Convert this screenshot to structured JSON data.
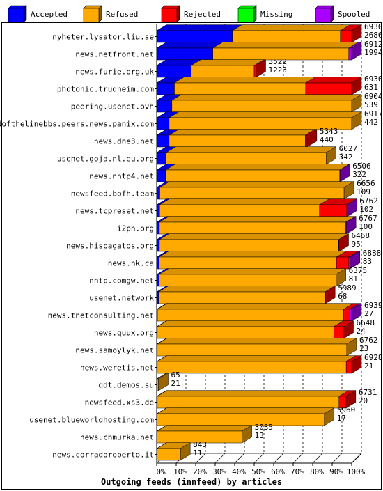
{
  "chart_data": {
    "type": "bar",
    "orientation": "horizontal",
    "stacked": true,
    "style": "3d",
    "xlabel": "Outgoing feeds (innfeed) by articles",
    "x_unit": "percent",
    "xlim": [
      0,
      100
    ],
    "x_ticks": [
      "0%",
      "10%",
      "20%",
      "30%",
      "40%",
      "50%",
      "60%",
      "70%",
      "80%",
      "90%",
      "100%"
    ],
    "grid": "vertical dashed",
    "legend_position": "top",
    "legend": [
      {
        "key": "accepted",
        "label": "Accepted",
        "color": "#0000ff"
      },
      {
        "key": "refused",
        "label": "Refused",
        "color": "#ffaa00"
      },
      {
        "key": "rejected",
        "label": "Rejected",
        "color": "#ff0000"
      },
      {
        "key": "missing",
        "label": "Missing",
        "color": "#00ff00"
      },
      {
        "key": "spooled",
        "label": "Spooled",
        "color": "#aa00ff"
      }
    ],
    "rows": [
      {
        "name": "nyheter.lysator.liu.se",
        "offered": "6930",
        "accepted": "2686",
        "pct": {
          "accepted": 38.8,
          "refused": 55.4,
          "rejected": 5.8,
          "missing": 0,
          "spooled": 0
        }
      },
      {
        "name": "news.netfront.net",
        "offered": "6912",
        "accepted": "1994",
        "pct": {
          "accepted": 28.8,
          "refused": 69.7,
          "rejected": 0,
          "missing": 0,
          "spooled": 1.5
        }
      },
      {
        "name": "news.furie.org.uk",
        "offered": "3522",
        "accepted": "1223",
        "pct": {
          "accepted": 17.7,
          "refused": 32.3,
          "rejected": 0.9,
          "missing": 0,
          "spooled": 0
        }
      },
      {
        "name": "photonic.trudheim.com",
        "offered": "6930",
        "accepted": "631",
        "pct": {
          "accepted": 9.1,
          "refused": 67.3,
          "rejected": 23.6,
          "missing": 0,
          "spooled": 0
        }
      },
      {
        "name": "peering.usenet.ovh",
        "offered": "6904",
        "accepted": "539",
        "pct": {
          "accepted": 7.8,
          "refused": 92.2,
          "rejected": 0,
          "missing": 0,
          "spooled": 0
        }
      },
      {
        "name": "endofthelinebbs.peers.news.panix.com",
        "offered": "6917",
        "accepted": "442",
        "pct": {
          "accepted": 6.4,
          "refused": 93.6,
          "rejected": 0,
          "missing": 0,
          "spooled": 0
        }
      },
      {
        "name": "news.dne3.net",
        "offered": "5343",
        "accepted": "440",
        "pct": {
          "accepted": 6.4,
          "refused": 69.8,
          "rejected": 0.9,
          "missing": 0,
          "spooled": 0
        }
      },
      {
        "name": "usenet.goja.nl.eu.org",
        "offered": "6027",
        "accepted": "342",
        "pct": {
          "accepted": 4.9,
          "refused": 82.1,
          "rejected": 0,
          "missing": 0,
          "spooled": 0
        }
      },
      {
        "name": "news.nntp4.net",
        "offered": "6506",
        "accepted": "322",
        "pct": {
          "accepted": 4.6,
          "refused": 89.3,
          "rejected": 0,
          "missing": 0,
          "spooled": 0.1
        }
      },
      {
        "name": "newsfeed.bofh.team",
        "offered": "6656",
        "accepted": "109",
        "pct": {
          "accepted": 1.6,
          "refused": 94.5,
          "rejected": 0,
          "missing": 0,
          "spooled": 0
        }
      },
      {
        "name": "news.tcpreset.net",
        "offered": "6762",
        "accepted": "102",
        "pct": {
          "accepted": 1.5,
          "refused": 82.0,
          "rejected": 14.0,
          "missing": 0,
          "spooled": 0.1
        }
      },
      {
        "name": "i2pn.org",
        "offered": "6767",
        "accepted": "100",
        "pct": {
          "accepted": 1.4,
          "refused": 95.6,
          "rejected": 0,
          "missing": 0,
          "spooled": 0.2
        }
      },
      {
        "name": "news.hispagatos.org",
        "offered": "6468",
        "accepted": "95",
        "pct": {
          "accepted": 1.4,
          "refused": 91.9,
          "rejected": 0.1,
          "missing": 0,
          "spooled": 0
        }
      },
      {
        "name": "news.nk.ca",
        "offered": "6888",
        "accepted": "83",
        "pct": {
          "accepted": 1.2,
          "refused": 91.0,
          "rejected": 6.3,
          "missing": 0,
          "spooled": 0.7
        }
      },
      {
        "name": "nntp.comgw.net",
        "offered": "6375",
        "accepted": "81",
        "pct": {
          "accepted": 1.2,
          "refused": 90.8,
          "rejected": 0,
          "missing": 0,
          "spooled": 0
        }
      },
      {
        "name": "usenet.network",
        "offered": "5989",
        "accepted": "68",
        "pct": {
          "accepted": 1.0,
          "refused": 85.4,
          "rejected": 0.1,
          "missing": 0,
          "spooled": 0
        }
      },
      {
        "name": "news.tnetconsulting.net",
        "offered": "6939",
        "accepted": "27",
        "pct": {
          "accepted": 0.4,
          "refused": 95.5,
          "rejected": 3.1,
          "missing": 0,
          "spooled": 1.0
        }
      },
      {
        "name": "news.quux.org",
        "offered": "6648",
        "accepted": "24",
        "pct": {
          "accepted": 0.3,
          "refused": 90.5,
          "rejected": 5.1,
          "missing": 0,
          "spooled": 0
        }
      },
      {
        "name": "news.samoylyk.net",
        "offered": "6762",
        "accepted": "23",
        "pct": {
          "accepted": 0.3,
          "refused": 97.2,
          "rejected": 0,
          "missing": 0,
          "spooled": 0
        }
      },
      {
        "name": "news.weretis.net",
        "offered": "6928",
        "accepted": "21",
        "pct": {
          "accepted": 0.3,
          "refused": 96.9,
          "rejected": 2.8,
          "missing": 0,
          "spooled": 0
        }
      },
      {
        "name": "ddt.demos.su",
        "offered": "65",
        "accepted": "21",
        "pct": {
          "accepted": 0.3,
          "refused": 0.6,
          "rejected": 0,
          "missing": 0,
          "spooled": 0
        }
      },
      {
        "name": "newsfeed.xs3.de",
        "offered": "6731",
        "accepted": "20",
        "pct": {
          "accepted": 0.3,
          "refused": 93.2,
          "rejected": 3.6,
          "missing": 0,
          "spooled": 0
        }
      },
      {
        "name": "usenet.blueworldhosting.com",
        "offered": "5960",
        "accepted": "17",
        "pct": {
          "accepted": 0.2,
          "refused": 85.8,
          "rejected": 0,
          "missing": 0,
          "spooled": 0
        }
      },
      {
        "name": "news.chmurka.net",
        "offered": "3035",
        "accepted": "13",
        "pct": {
          "accepted": 0.2,
          "refused": 43.6,
          "rejected": 0,
          "missing": 0,
          "spooled": 0
        }
      },
      {
        "name": "news.corradoroberto.it",
        "offered": "843",
        "accepted": "11",
        "pct": {
          "accepted": 0.2,
          "refused": 12.0,
          "rejected": 0,
          "missing": 0,
          "spooled": 0
        }
      }
    ]
  }
}
